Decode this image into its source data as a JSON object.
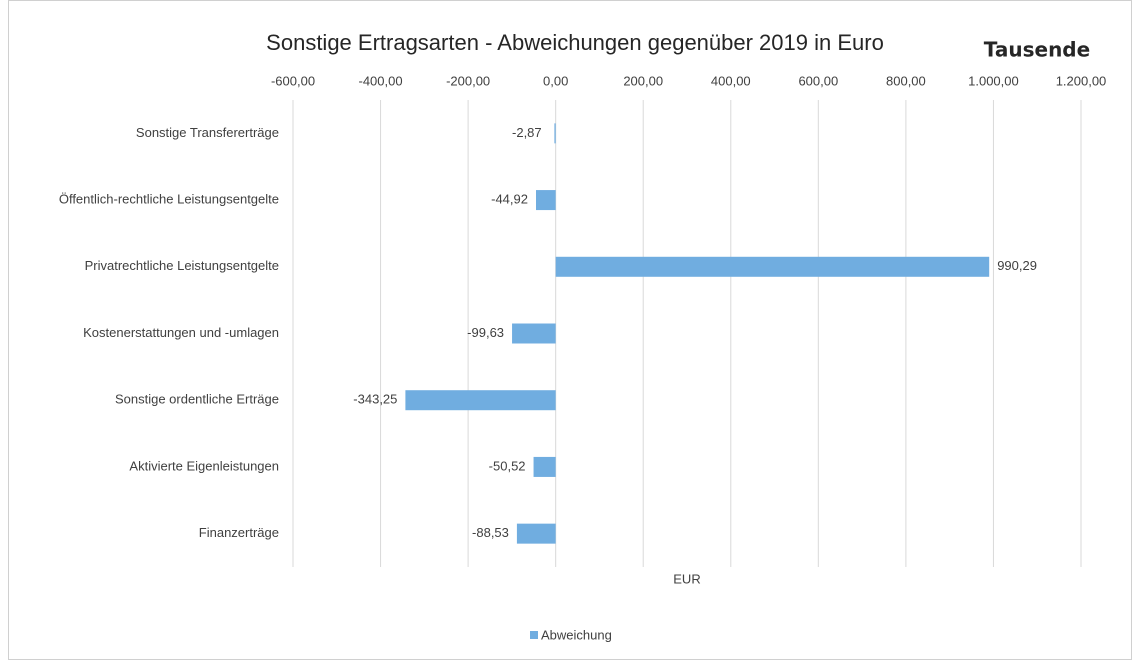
{
  "chart_data": {
    "type": "bar",
    "orientation": "horizontal",
    "title": "Sonstige Ertragsarten - Abweichungen gegenüber 2019 in Euro",
    "display_units": "Tausende",
    "x_label": "EUR",
    "categories": [
      "Sonstige Transfererträge",
      "Öffentlich-rechtliche Leistungsentgelte",
      "Privatrechtliche Leistungsentgelte",
      "Kostenerstattungen und -umlagen",
      "Sonstige ordentliche Erträge",
      "Aktivierte Eigenleistungen",
      "Finanzerträge"
    ],
    "series": [
      {
        "name": "Abweichung",
        "color": "#70ade0",
        "values": [
          -2.87,
          -44.92,
          990.29,
          -99.63,
          -343.25,
          -50.52,
          -88.53
        ],
        "value_labels": [
          "-2,87",
          "-44,92",
          "990,29",
          "-99,63",
          "-343,25",
          "-50,52",
          "-88,53"
        ]
      }
    ],
    "xlim": [
      -600,
      1200
    ],
    "xticks": [
      {
        "value": -600,
        "label": "-600,00"
      },
      {
        "value": -400,
        "label": "-400,00"
      },
      {
        "value": -200,
        "label": "-200,00"
      },
      {
        "value": 0,
        "label": "0,00"
      },
      {
        "value": 200,
        "label": "200,00"
      },
      {
        "value": 400,
        "label": "400,00"
      },
      {
        "value": 600,
        "label": "600,00"
      },
      {
        "value": 800,
        "label": "800,00"
      },
      {
        "value": 1000,
        "label": "1.000,00"
      },
      {
        "value": 1200,
        "label": "1.200,00"
      }
    ],
    "grid": true,
    "legend": "bottom"
  }
}
